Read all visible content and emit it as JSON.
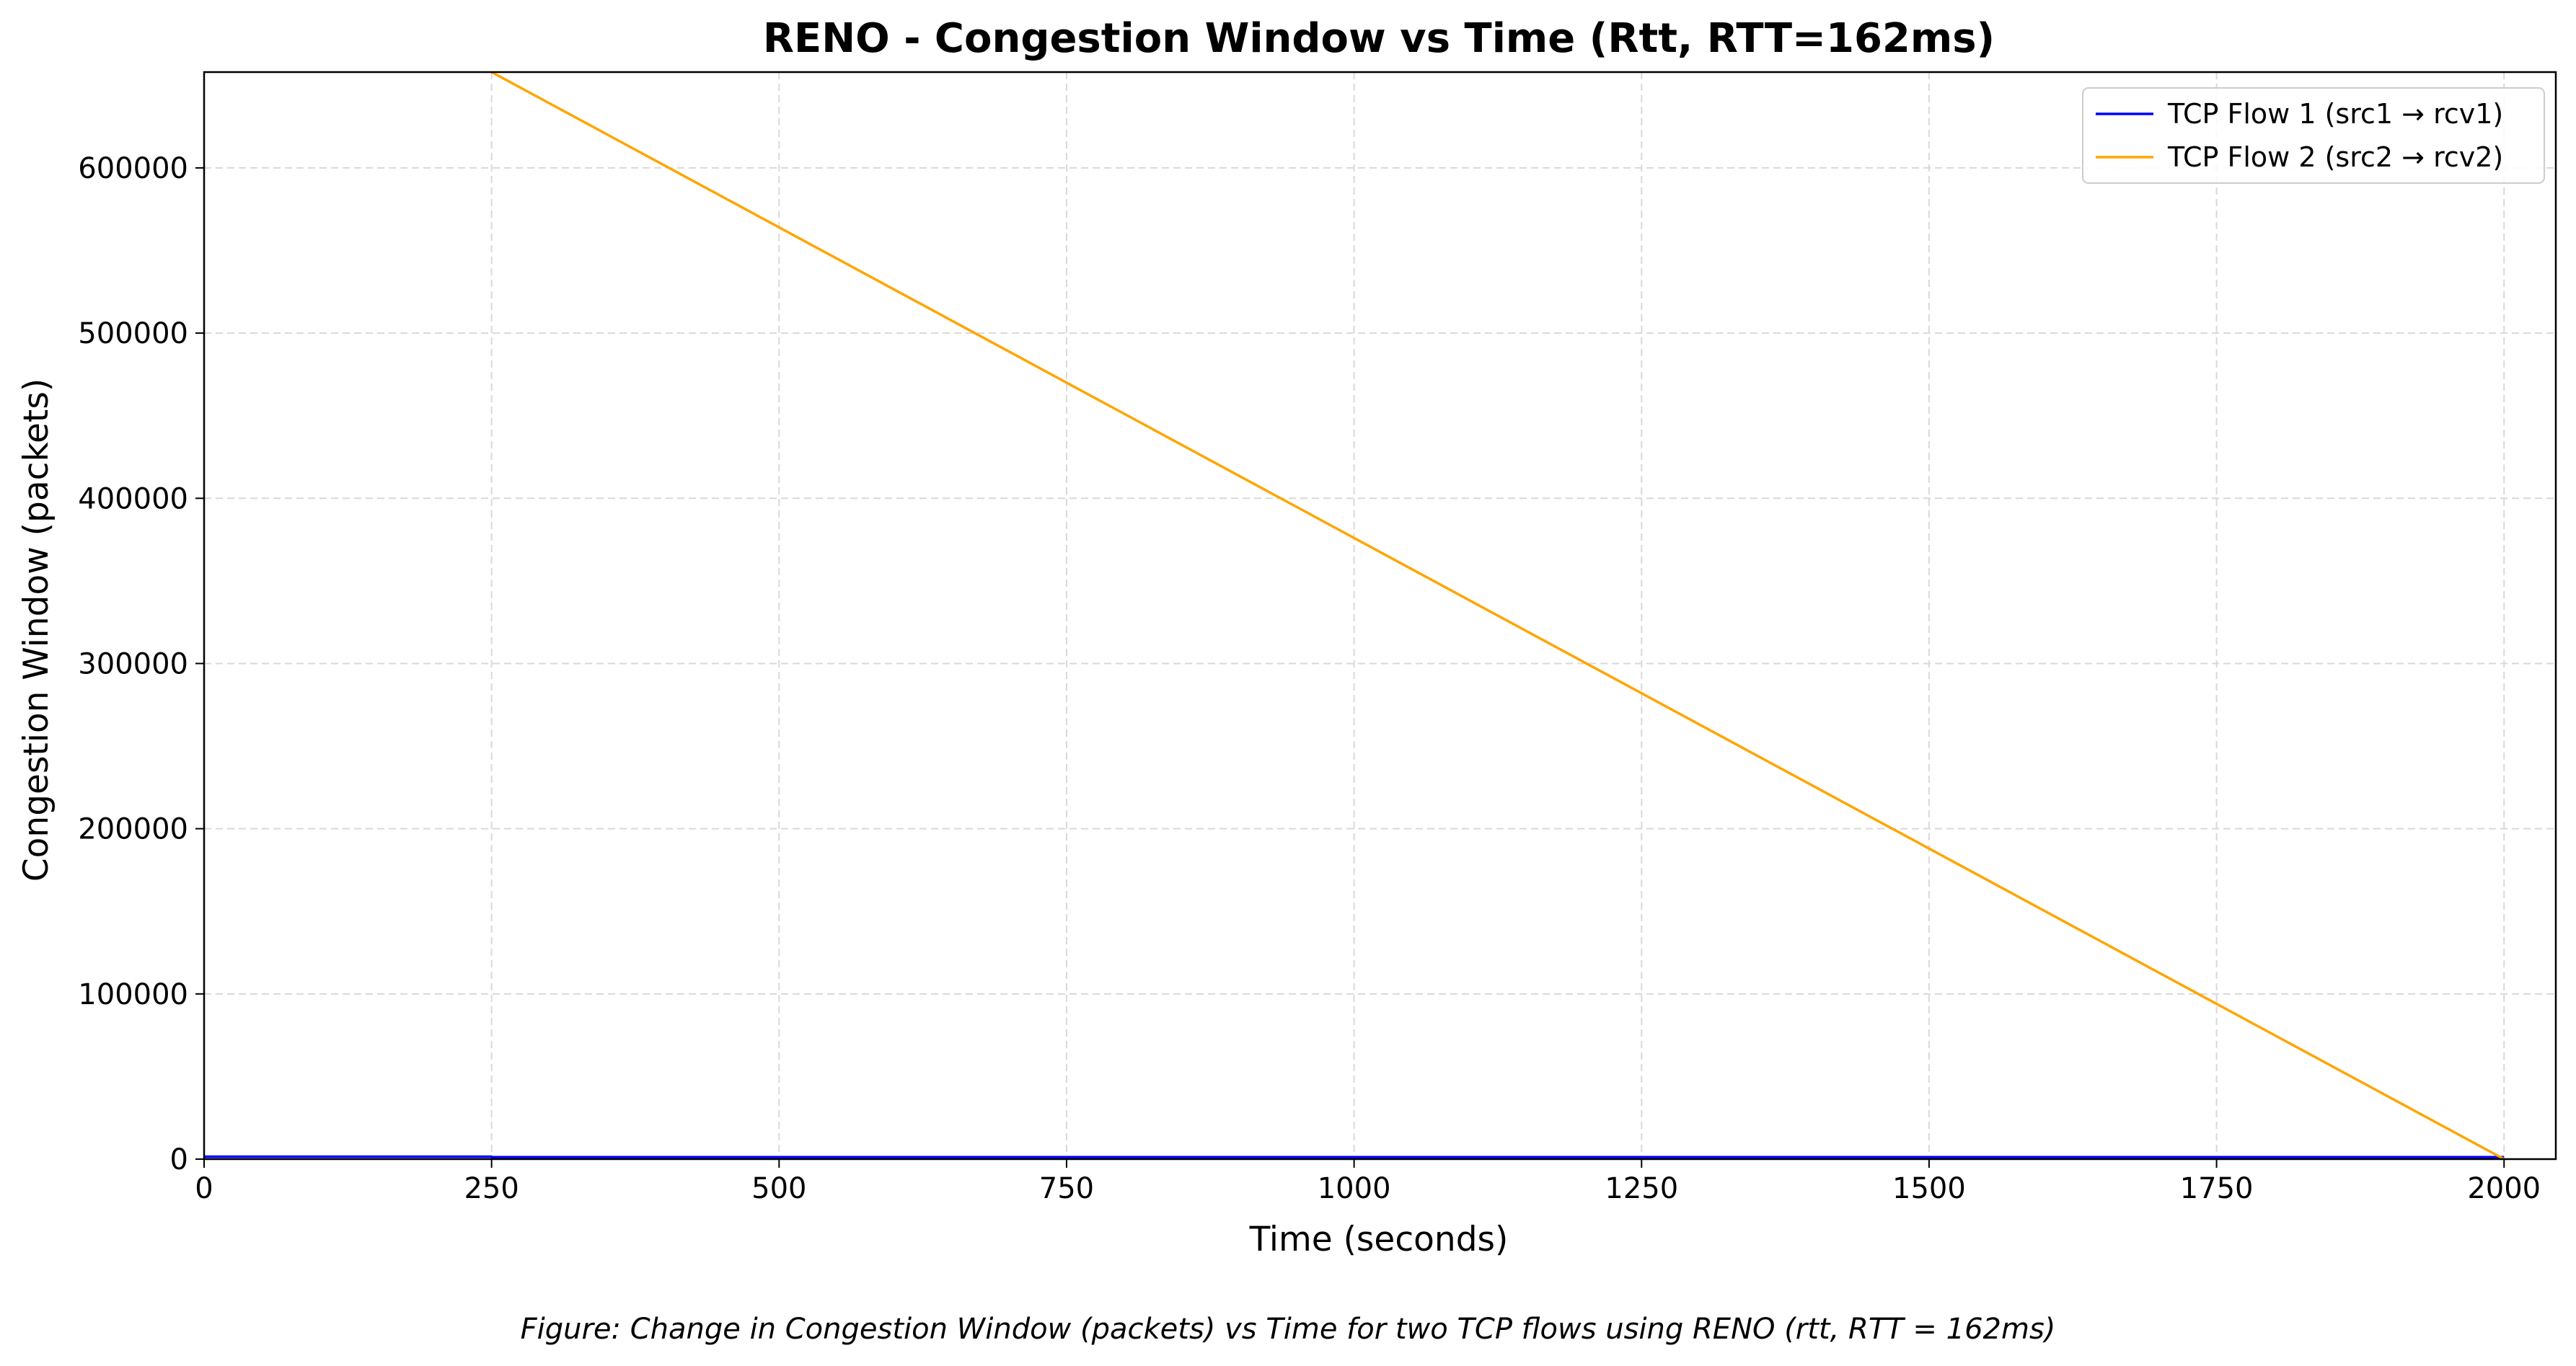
{
  "chart_data": {
    "type": "line",
    "title": "RENO - Congestion Window vs Time (Rtt, RTT=162ms)",
    "xlabel": "Time (seconds)",
    "ylabel": "Congestion Window (packets)",
    "xlim": [
      0,
      2045
    ],
    "ylim": [
      0,
      658000
    ],
    "xticks": [
      0,
      250,
      500,
      750,
      1000,
      1250,
      1500,
      1750,
      2000
    ],
    "yticks": [
      0,
      100000,
      200000,
      300000,
      400000,
      500000,
      600000
    ],
    "grid": true,
    "legend_position": "top-right",
    "series": [
      {
        "name": "TCP Flow 1 (src1 → rcv1)",
        "color": "#0000ff",
        "x": [
          0,
          250,
          250,
          2000
        ],
        "y": [
          1500,
          1500,
          1200,
          1200
        ]
      },
      {
        "name": "TCP Flow 2 (src2 → rcv2)",
        "color": "#ffa500",
        "x": [
          250,
          2000
        ],
        "y": [
          658000,
          0
        ]
      }
    ]
  },
  "caption": "Figure: Change in Congestion Window (packets) vs Time for two TCP flows using RENO (rtt, RTT = 162ms)"
}
